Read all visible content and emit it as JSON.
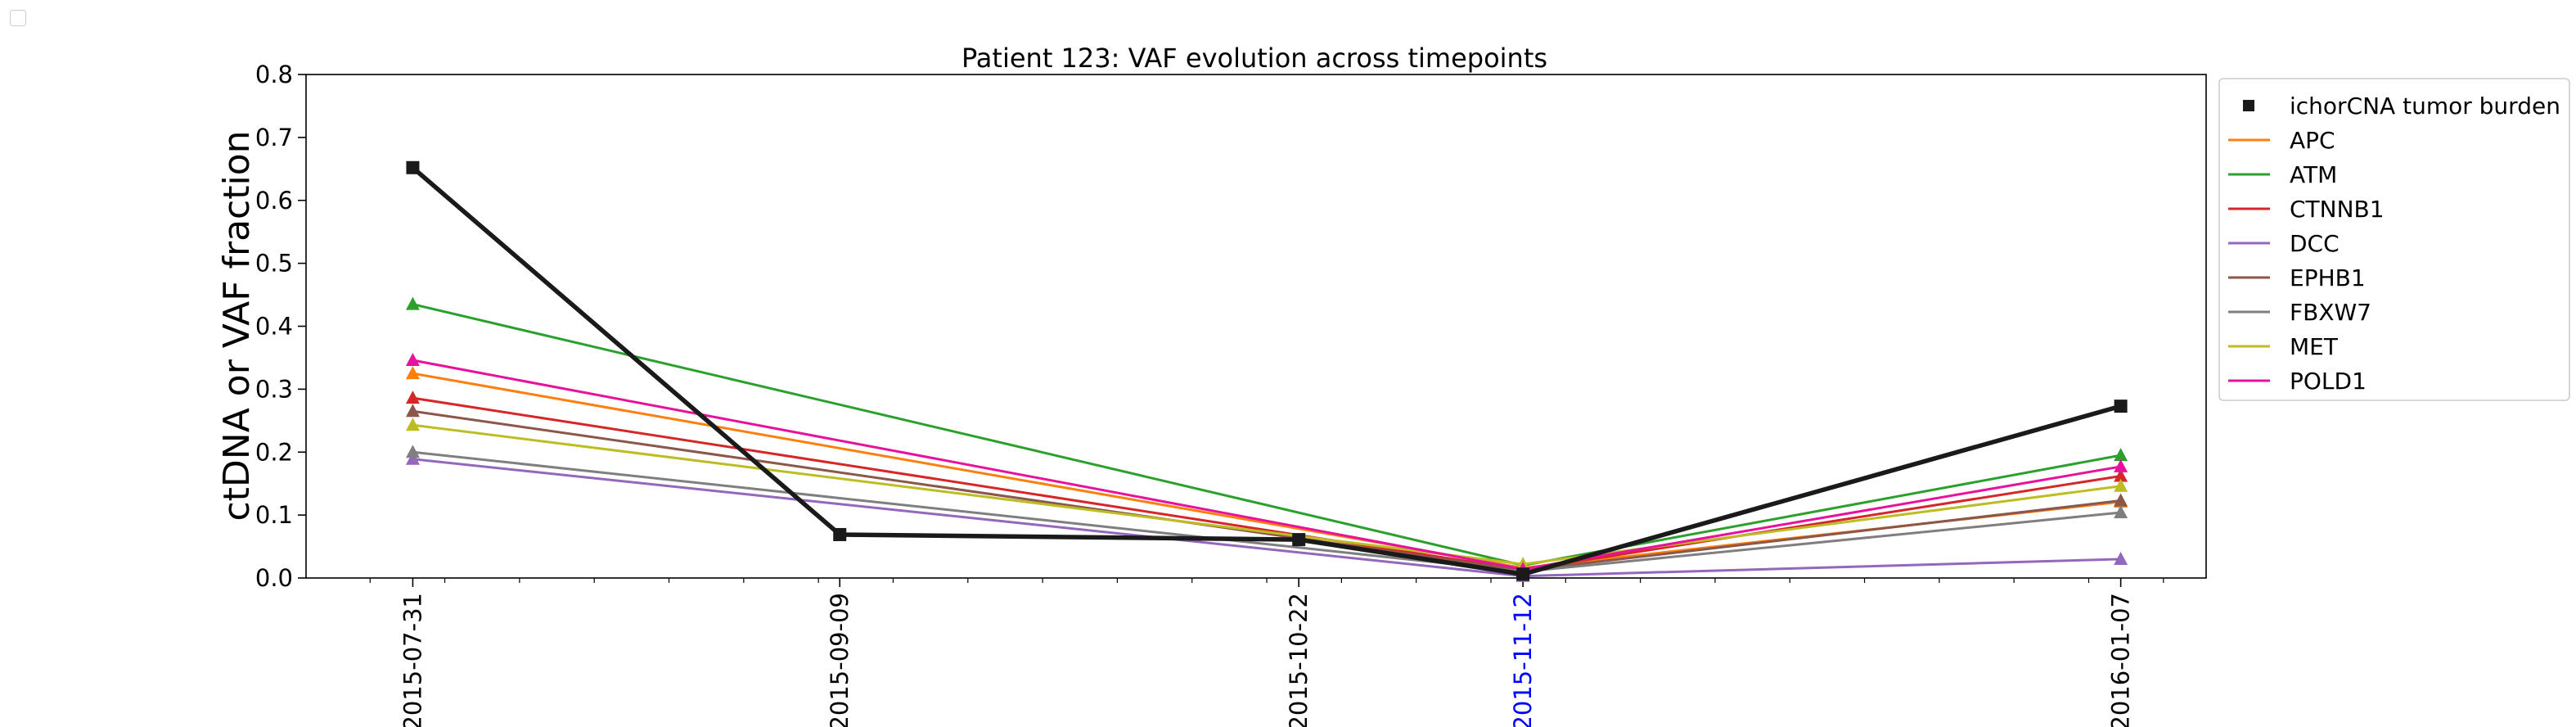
{
  "chart_data": {
    "type": "line",
    "title": "Patient 123: VAF evolution across timepoints",
    "xlabel": "",
    "ylabel": "ctDNA or VAF fraction",
    "ylim": [
      0,
      0.8
    ],
    "y_ticks": [
      "0.0",
      "0.1",
      "0.2",
      "0.3",
      "0.4",
      "0.5",
      "0.6",
      "0.7",
      "0.8"
    ],
    "x_range": [
      "2015-07-21",
      "2016-01-15"
    ],
    "x": [
      "2015-07-31",
      "2015-09-09",
      "2015-10-22",
      "2015-11-12",
      "2016-01-07"
    ],
    "x_tick_colors": [
      "#000000",
      "#000000",
      "#000000",
      "#0000ff",
      "#000000"
    ],
    "grid": false,
    "legend_position": "outside-right",
    "series": [
      {
        "name": "ichorCNA tumor burden",
        "color": "#1a1a1a",
        "marker": "square",
        "x": [
          "2015-07-31",
          "2015-09-09",
          "2015-10-22",
          "2015-11-12",
          "2016-01-07"
        ],
        "values": [
          0.652,
          0.069,
          0.061,
          0.006,
          0.273
        ]
      },
      {
        "name": "APC",
        "color": "#ff7f0e",
        "marker": "triangle",
        "x": [
          "2015-07-31",
          "2015-11-12",
          "2016-01-07"
        ],
        "values": [
          0.325,
          0.016,
          0.121
        ]
      },
      {
        "name": "ATM",
        "color": "#2ca02c",
        "marker": "triangle",
        "x": [
          "2015-07-31",
          "2015-11-12",
          "2016-01-07"
        ],
        "values": [
          0.435,
          0.02,
          0.195
        ]
      },
      {
        "name": "CTNNB1",
        "color": "#d62728",
        "marker": "triangle",
        "x": [
          "2015-07-31",
          "2015-11-12",
          "2016-01-07"
        ],
        "values": [
          0.286,
          0.013,
          0.162
        ]
      },
      {
        "name": "DCC",
        "color": "#9467bd",
        "marker": "triangle",
        "x": [
          "2015-07-31",
          "2015-11-12",
          "2016-01-07"
        ],
        "values": [
          0.189,
          0.003,
          0.03
        ]
      },
      {
        "name": "EPHB1",
        "color": "#8c564b",
        "marker": "triangle",
        "x": [
          "2015-07-31",
          "2015-11-12",
          "2016-01-07"
        ],
        "values": [
          0.265,
          0.012,
          0.123
        ]
      },
      {
        "name": "FBXW7",
        "color": "#7f7f7f",
        "marker": "triangle",
        "x": [
          "2015-07-31",
          "2015-11-12",
          "2016-01-07"
        ],
        "values": [
          0.2,
          0.01,
          0.104
        ]
      },
      {
        "name": "MET",
        "color": "#bcbd22",
        "marker": "triangle",
        "x": [
          "2015-07-31",
          "2015-11-12",
          "2016-01-07"
        ],
        "values": [
          0.243,
          0.022,
          0.146
        ]
      },
      {
        "name": "POLD1",
        "color": "#e7119b",
        "marker": "triangle",
        "x": [
          "2015-07-31",
          "2015-11-12",
          "2016-01-07"
        ],
        "values": [
          0.346,
          0.014,
          0.177
        ]
      }
    ]
  }
}
